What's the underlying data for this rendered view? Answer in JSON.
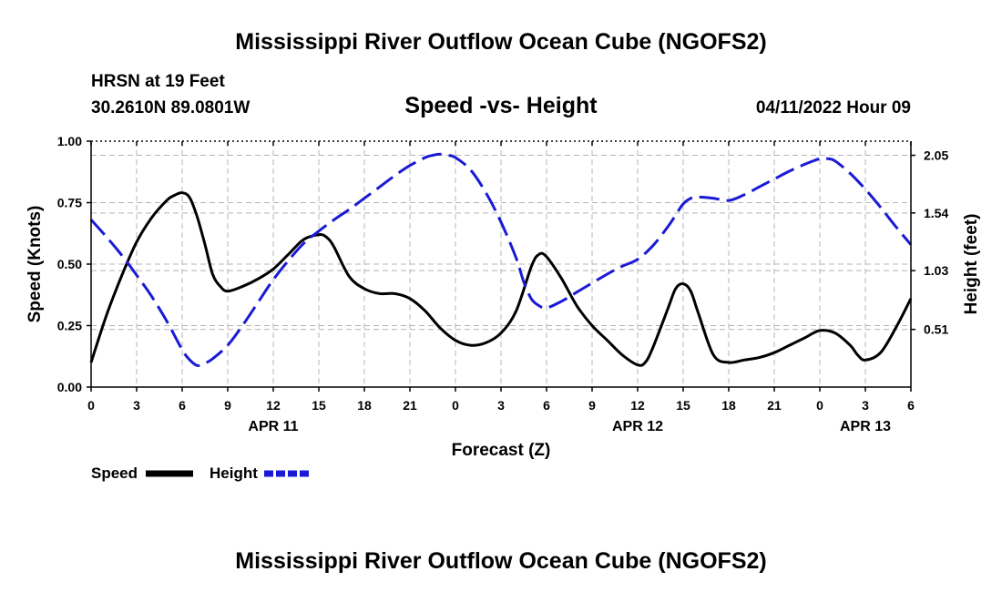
{
  "page": {
    "title": "Mississippi River Outflow Ocean Cube (NGOFS2)",
    "footer_title": "Mississippi River Outflow Ocean Cube (NGOFS2)",
    "station": "HRSN at 19 Feet",
    "coords": "30.2610N  89.0801W",
    "datetime": "04/11/2022 Hour 09"
  },
  "chart_data": {
    "type": "line",
    "title": "Speed -vs- Height",
    "xlabel": "Forecast (Z)",
    "ylabel": "Speed (Knots)",
    "y2label": "Height (feet)",
    "xlim": [
      0,
      54
    ],
    "ylim": [
      0,
      1.0
    ],
    "y2lim": [
      0.0,
      2.175
    ],
    "grid": true,
    "x_ticks": [
      {
        "x": 0,
        "label": "0"
      },
      {
        "x": 3,
        "label": "3"
      },
      {
        "x": 6,
        "label": "6"
      },
      {
        "x": 9,
        "label": "9"
      },
      {
        "x": 12,
        "label": "12"
      },
      {
        "x": 15,
        "label": "15"
      },
      {
        "x": 18,
        "label": "18"
      },
      {
        "x": 21,
        "label": "21"
      },
      {
        "x": 24,
        "label": "0"
      },
      {
        "x": 27,
        "label": "3"
      },
      {
        "x": 30,
        "label": "6"
      },
      {
        "x": 33,
        "label": "9"
      },
      {
        "x": 36,
        "label": "12"
      },
      {
        "x": 39,
        "label": "15"
      },
      {
        "x": 42,
        "label": "18"
      },
      {
        "x": 45,
        "label": "21"
      },
      {
        "x": 48,
        "label": "0"
      },
      {
        "x": 51,
        "label": "3"
      },
      {
        "x": 54,
        "label": "6"
      }
    ],
    "date_labels": [
      {
        "x": 12,
        "label": "APR 11"
      },
      {
        "x": 36,
        "label": "APR 12"
      },
      {
        "x": 51,
        "label": "APR 13"
      }
    ],
    "y_ticks": [
      {
        "y": 0.0,
        "label": "0.00"
      },
      {
        "y": 0.25,
        "label": "0.25"
      },
      {
        "y": 0.5,
        "label": "0.50"
      },
      {
        "y": 0.75,
        "label": "0.75"
      },
      {
        "y": 1.0,
        "label": "1.00"
      }
    ],
    "y2_ticks": [
      {
        "y": 0.51,
        "label": "0.51"
      },
      {
        "y": 1.03,
        "label": "1.03"
      },
      {
        "y": 1.54,
        "label": "1.54"
      },
      {
        "y": 2.05,
        "label": "2.05"
      }
    ],
    "series": [
      {
        "name": "Speed",
        "axis": "left",
        "color": "#000000",
        "dash": "solid",
        "x": [
          0,
          1,
          2,
          3,
          4,
          5,
          5.5,
          6,
          6.5,
          7,
          7.5,
          8,
          8.5,
          9,
          10,
          11,
          12,
          13,
          14,
          15,
          15.5,
          16,
          17,
          18,
          19,
          20,
          21,
          22,
          23,
          24,
          25,
          26,
          27,
          28,
          29,
          29.5,
          30,
          31,
          32,
          33,
          34,
          35,
          36,
          36.5,
          37,
          38,
          38.5,
          39,
          39.5,
          40,
          41,
          42,
          43,
          44,
          45,
          46,
          47,
          48,
          49,
          50,
          50.5,
          51,
          52,
          53,
          54
        ],
        "values": [
          0.1,
          0.29,
          0.45,
          0.59,
          0.69,
          0.76,
          0.78,
          0.79,
          0.77,
          0.69,
          0.58,
          0.46,
          0.41,
          0.39,
          0.41,
          0.44,
          0.48,
          0.54,
          0.6,
          0.62,
          0.61,
          0.57,
          0.45,
          0.4,
          0.38,
          0.38,
          0.36,
          0.31,
          0.24,
          0.19,
          0.17,
          0.18,
          0.22,
          0.31,
          0.49,
          0.54,
          0.53,
          0.44,
          0.33,
          0.25,
          0.19,
          0.13,
          0.09,
          0.1,
          0.16,
          0.32,
          0.4,
          0.42,
          0.39,
          0.3,
          0.13,
          0.1,
          0.11,
          0.12,
          0.14,
          0.17,
          0.2,
          0.23,
          0.22,
          0.17,
          0.13,
          0.11,
          0.14,
          0.24,
          0.36
        ]
      },
      {
        "name": "Height",
        "axis": "right",
        "color": "#1a1ad6",
        "dash": "dashed",
        "x": [
          0,
          1,
          2,
          3,
          4,
          5,
          6,
          6.5,
          7,
          7.5,
          8,
          9,
          10,
          11,
          12,
          13,
          14,
          15,
          16,
          17,
          18,
          19,
          20,
          21,
          22,
          22.5,
          23,
          23.5,
          24,
          25,
          26,
          27,
          28,
          28.5,
          29,
          29.5,
          30,
          31,
          32,
          33,
          34,
          35,
          36,
          37,
          38,
          38.5,
          39,
          39.5,
          40,
          41,
          42,
          43,
          44,
          45,
          46,
          47,
          48,
          48.5,
          49,
          50,
          51,
          52,
          53,
          54
        ],
        "values": [
          1.48,
          1.33,
          1.17,
          0.99,
          0.8,
          0.58,
          0.33,
          0.24,
          0.19,
          0.21,
          0.25,
          0.37,
          0.55,
          0.75,
          0.95,
          1.12,
          1.27,
          1.38,
          1.48,
          1.57,
          1.67,
          1.77,
          1.87,
          1.96,
          2.03,
          2.05,
          2.06,
          2.05,
          2.03,
          1.92,
          1.72,
          1.46,
          1.14,
          0.93,
          0.78,
          0.72,
          0.7,
          0.76,
          0.84,
          0.92,
          1.0,
          1.07,
          1.13,
          1.25,
          1.42,
          1.52,
          1.62,
          1.67,
          1.68,
          1.67,
          1.65,
          1.7,
          1.77,
          1.84,
          1.91,
          1.97,
          2.02,
          2.02,
          2.0,
          1.89,
          1.75,
          1.59,
          1.42,
          1.26
        ]
      }
    ]
  },
  "legend": {
    "speed_label": "Speed",
    "height_label": "Height"
  }
}
